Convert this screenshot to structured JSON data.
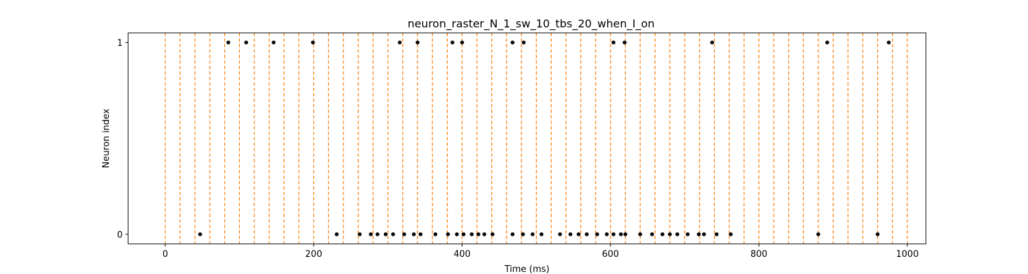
{
  "chart_data": {
    "type": "scatter",
    "title": "neuron_raster_N_1_sw_10_tbs_20_when_I_on",
    "xlabel": "Time (ms)",
    "ylabel": "Neuron index",
    "xlim": [
      -50,
      1025
    ],
    "ylim": [
      -0.05,
      1.05
    ],
    "xticks": [
      0,
      200,
      400,
      600,
      800,
      1000
    ],
    "xtick_labels": [
      "0",
      "200",
      "400",
      "600",
      "800",
      "1000"
    ],
    "yticks": [
      0,
      1
    ],
    "ytick_labels": [
      "0",
      "1"
    ],
    "grid": false,
    "marker_color": "#000000",
    "vline_color": "#ff7f0e",
    "vlines_x": [
      0,
      20,
      40,
      60,
      80,
      100,
      120,
      140,
      160,
      180,
      200,
      220,
      240,
      260,
      280,
      300,
      320,
      340,
      360,
      380,
      400,
      420,
      440,
      460,
      480,
      500,
      520,
      540,
      560,
      580,
      600,
      620,
      640,
      660,
      680,
      700,
      720,
      740,
      760,
      780,
      800,
      820,
      840,
      860,
      880,
      900,
      920,
      940,
      960,
      980,
      1000
    ],
    "series": [
      {
        "neuron": 0,
        "x": [
          47,
          231,
          262,
          277,
          286,
          297,
          307,
          322,
          335,
          344,
          364,
          381,
          393,
          402,
          413,
          422,
          430,
          441,
          468,
          482,
          495,
          507,
          532,
          546,
          557,
          568,
          582,
          595,
          604,
          614,
          620,
          640,
          656,
          670,
          680,
          690,
          704,
          719,
          726,
          743,
          762,
          880,
          960
        ],
        "y": 0
      },
      {
        "neuron": 1,
        "x": [
          85,
          109,
          146,
          199,
          316,
          340,
          387,
          400,
          468,
          483,
          604,
          619,
          737,
          892,
          975
        ],
        "y": 1
      }
    ]
  }
}
